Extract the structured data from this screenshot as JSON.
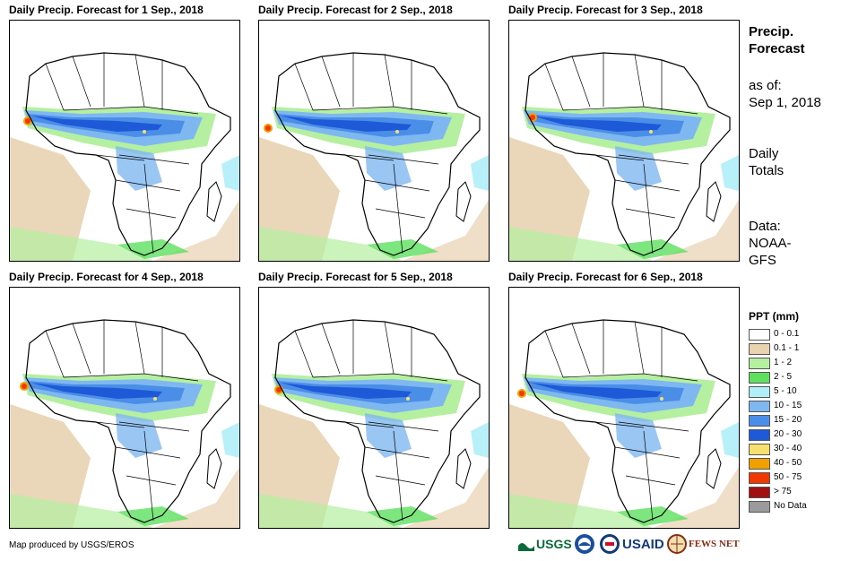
{
  "panels": [
    {
      "title": "Daily Precip. Forecast for 1 Sep., 2018"
    },
    {
      "title": "Daily Precip. Forecast for 2 Sep., 2018"
    },
    {
      "title": "Daily Precip. Forecast for 3 Sep., 2018"
    },
    {
      "title": "Daily Precip. Forecast for 4 Sep., 2018"
    },
    {
      "title": "Daily Precip. Forecast for 5 Sep., 2018"
    },
    {
      "title": "Daily Precip. Forecast for 6 Sep., 2018"
    }
  ],
  "sidebar": {
    "heading_line1": "Precip.",
    "heading_line2": "Forecast",
    "asof_line1": "as of:",
    "asof_line2": "Sep 1, 2018",
    "daily_line1": "Daily",
    "daily_line2": "Totals",
    "data_line1": "Data:",
    "data_line2": "NOAA-",
    "data_line3": "GFS"
  },
  "legend": {
    "title": "PPT (mm)",
    "items": [
      {
        "label": "0 - 0.1",
        "color": "#ffffff"
      },
      {
        "label": "0.1 - 1",
        "color": "#e8d2b0"
      },
      {
        "label": "1 - 2",
        "color": "#b4f0a0"
      },
      {
        "label": "2 - 5",
        "color": "#5ee05e"
      },
      {
        "label": "5 - 10",
        "color": "#b0eef8"
      },
      {
        "label": "10 - 15",
        "color": "#7fb8f0"
      },
      {
        "label": "15 - 20",
        "color": "#4a8ee8"
      },
      {
        "label": "20 - 30",
        "color": "#1e5ad8"
      },
      {
        "label": "30 - 40",
        "color": "#f8e070"
      },
      {
        "label": "40 - 50",
        "color": "#f0a000"
      },
      {
        "label": "50 - 75",
        "color": "#f03800"
      },
      {
        "label": "> 75",
        "color": "#a01010"
      },
      {
        "label": "No Data",
        "color": "#9a9a9a"
      }
    ]
  },
  "credit": "Map produced by USGS/EROS",
  "logos": {
    "usgs": "USGS",
    "noaa": "NOAA",
    "usaid": "USAID",
    "fewsnet": "FEWS NET"
  }
}
